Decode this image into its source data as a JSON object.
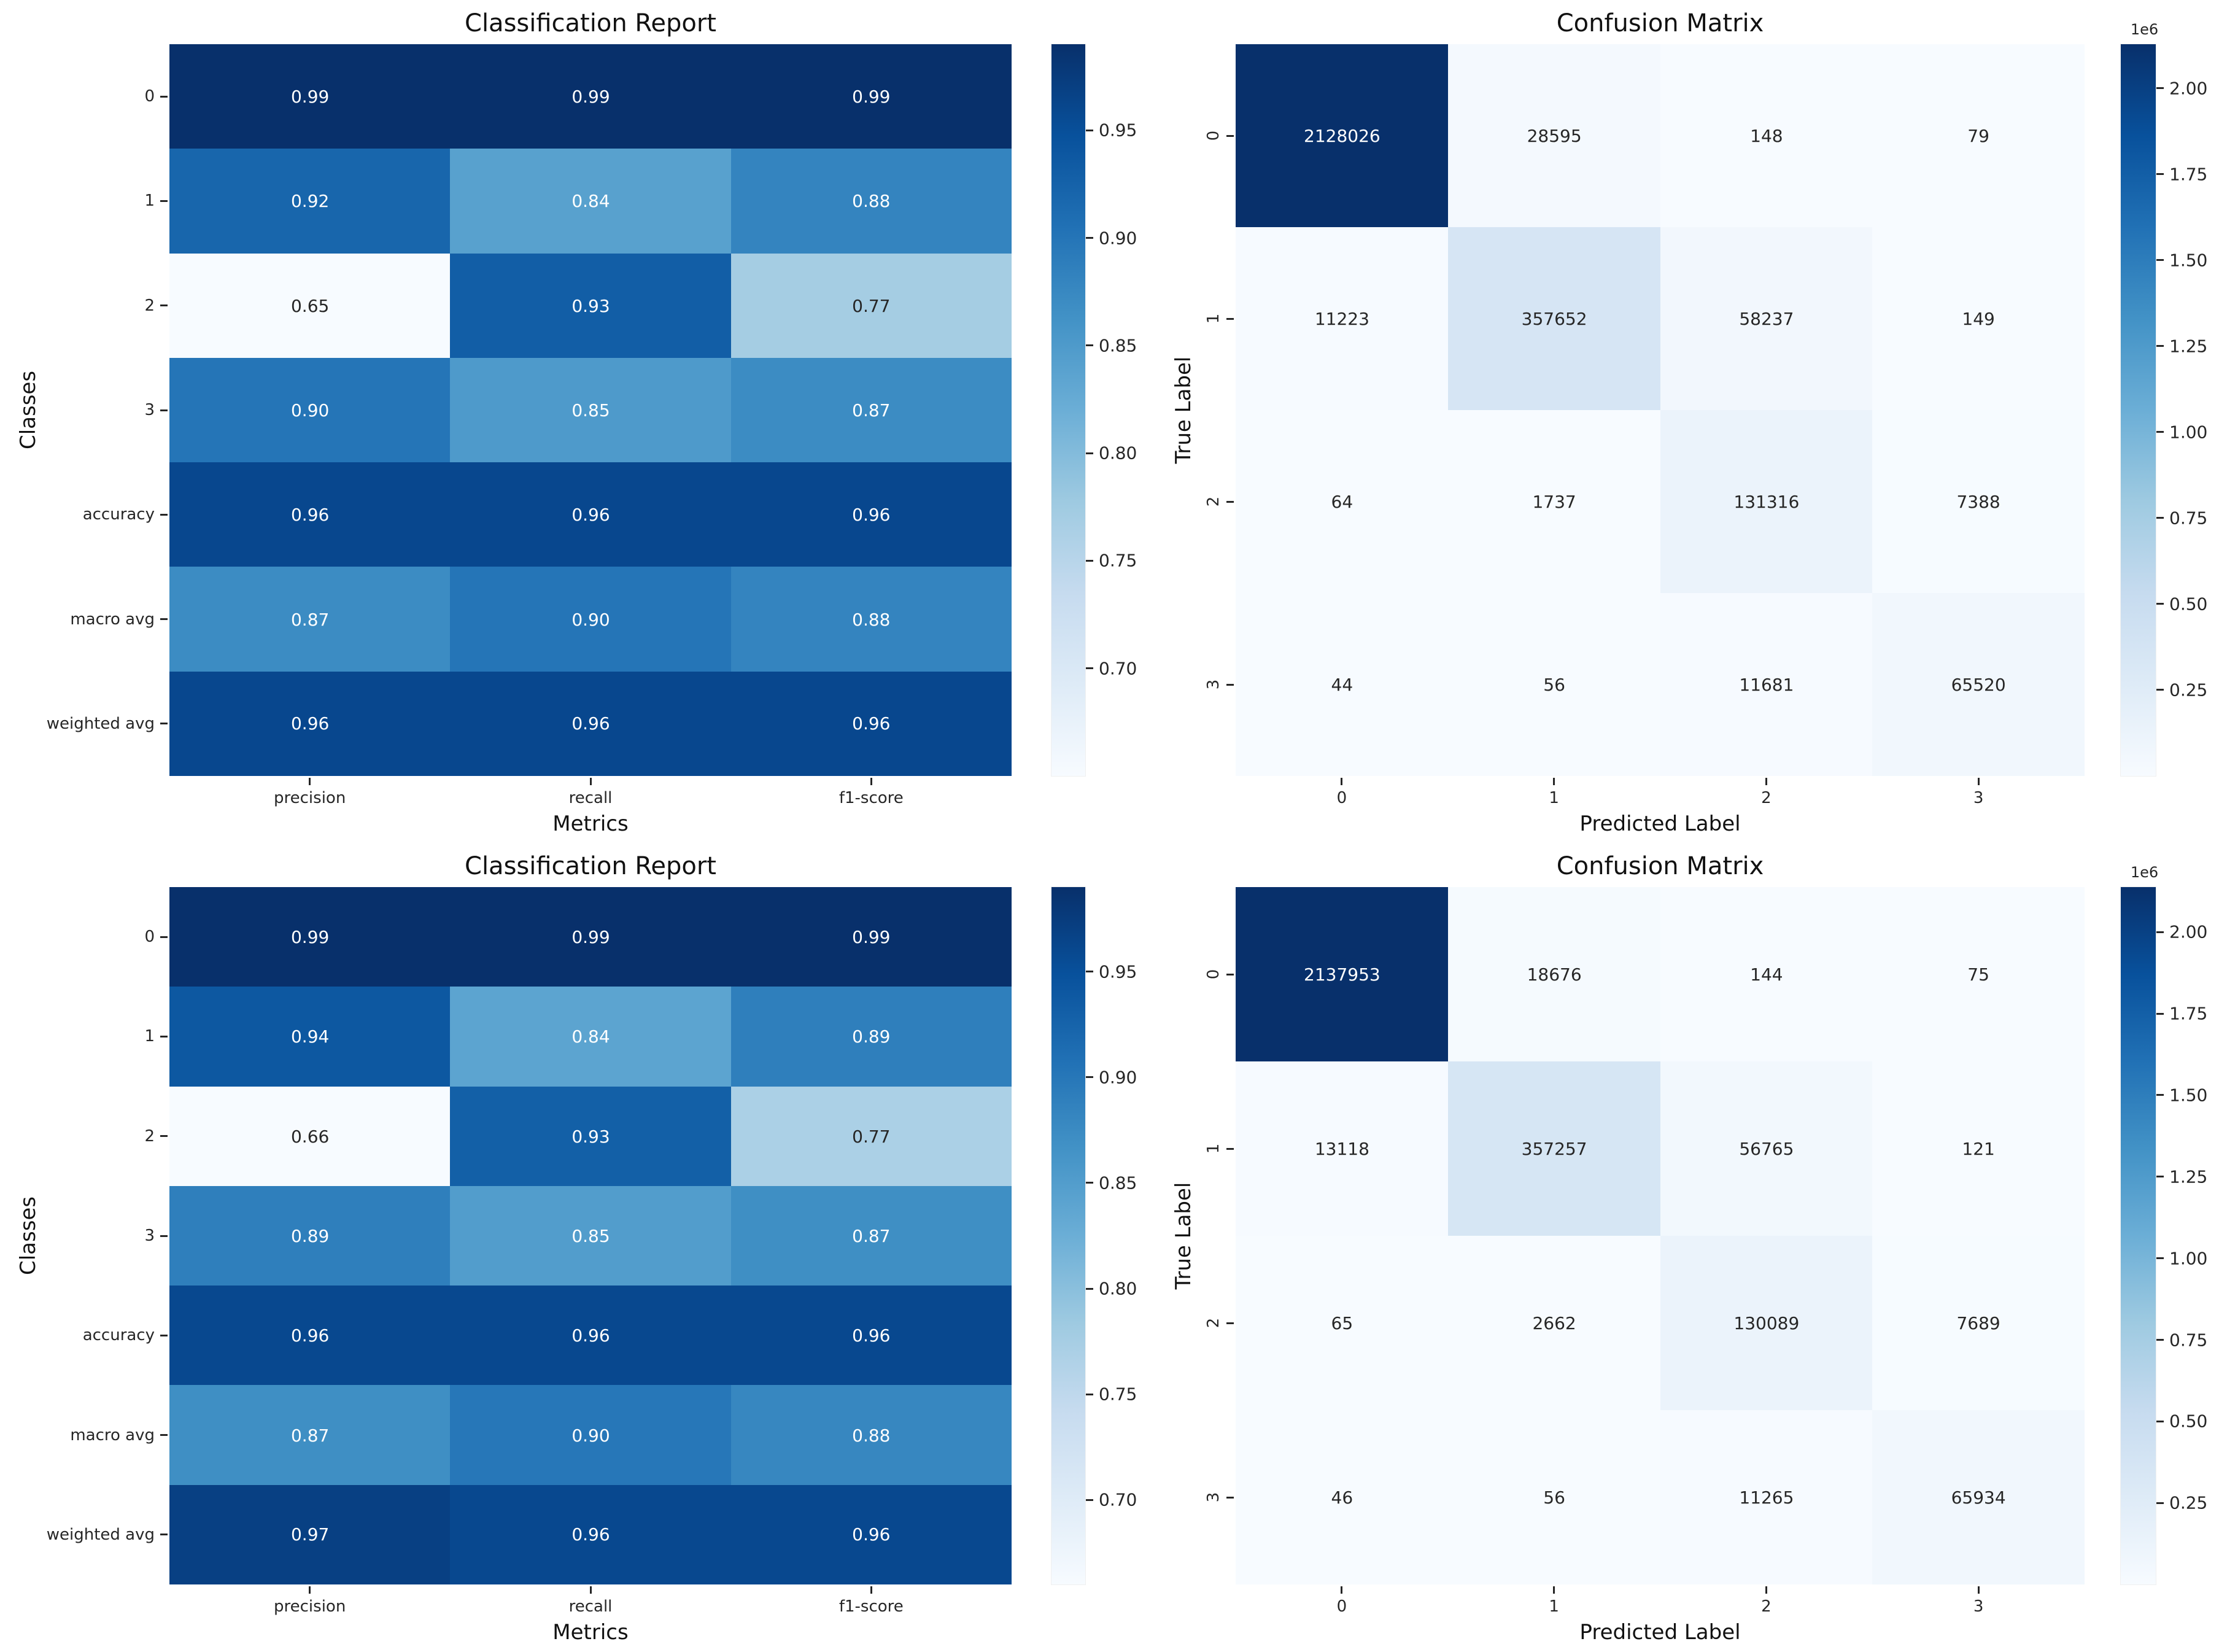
{
  "figure": {
    "background": "#ffffff"
  },
  "palette": {
    "cmap_name": "Blues",
    "cmap_stops": [
      "#f7fbff",
      "#deebf7",
      "#c6dbef",
      "#9ecae1",
      "#6baed6",
      "#4292c6",
      "#2171b5",
      "#08519c",
      "#08306b"
    ],
    "annotation_dark": "#262626",
    "annotation_light": "#ffffff",
    "text_color": "#111111"
  },
  "chart_data": [
    {
      "id": "classification-report-top",
      "type": "heatmap",
      "title": "Classification Report",
      "xlabel": "Metrics",
      "ylabel": "Classes",
      "x_categories": [
        "precision",
        "recall",
        "f1-score"
      ],
      "y_categories": [
        "0",
        "1",
        "2",
        "3",
        "accuracy",
        "macro avg",
        "weighted avg"
      ],
      "values": [
        [
          0.99,
          0.99,
          0.99
        ],
        [
          0.92,
          0.84,
          0.88
        ],
        [
          0.65,
          0.93,
          0.77
        ],
        [
          0.9,
          0.85,
          0.87
        ],
        [
          0.96,
          0.96,
          0.96
        ],
        [
          0.87,
          0.9,
          0.88
        ],
        [
          0.96,
          0.96,
          0.96
        ]
      ],
      "value_decimals": 2,
      "vmin": 0.65,
      "vmax": 0.99,
      "ytick_rotation": 0,
      "legend_position": "right-colorbar",
      "grid": false,
      "colorbar": {
        "tick_values": [
          0.7,
          0.75,
          0.8,
          0.85,
          0.9,
          0.95
        ],
        "tick_labels": [
          "0.70",
          "0.75",
          "0.80",
          "0.85",
          "0.90",
          "0.95"
        ],
        "offset_label": ""
      }
    },
    {
      "id": "confusion-matrix-top",
      "type": "heatmap",
      "title": "Confusion Matrix",
      "xlabel": "Predicted Label",
      "ylabel": "True Label",
      "x_categories": [
        "0",
        "1",
        "2",
        "3"
      ],
      "y_categories": [
        "0",
        "1",
        "2",
        "3"
      ],
      "values": [
        [
          2128026,
          28595,
          148,
          79
        ],
        [
          11223,
          357652,
          58237,
          149
        ],
        [
          64,
          1737,
          131316,
          7388
        ],
        [
          44,
          56,
          11681,
          65520
        ]
      ],
      "value_decimals": 0,
      "vmin": 44,
      "vmax": 2128026,
      "ytick_rotation": 90,
      "legend_position": "right-colorbar",
      "grid": false,
      "colorbar": {
        "tick_values": [
          250000,
          500000,
          750000,
          1000000,
          1250000,
          1500000,
          1750000,
          2000000
        ],
        "tick_labels": [
          "0.25",
          "0.50",
          "0.75",
          "1.00",
          "1.25",
          "1.50",
          "1.75",
          "2.00"
        ],
        "offset_label": "1e6"
      }
    },
    {
      "id": "classification-report-bottom",
      "type": "heatmap",
      "title": "Classification Report",
      "xlabel": "Metrics",
      "ylabel": "Classes",
      "x_categories": [
        "precision",
        "recall",
        "f1-score"
      ],
      "y_categories": [
        "0",
        "1",
        "2",
        "3",
        "accuracy",
        "macro avg",
        "weighted avg"
      ],
      "values": [
        [
          0.99,
          0.99,
          0.99
        ],
        [
          0.94,
          0.84,
          0.89
        ],
        [
          0.66,
          0.93,
          0.77
        ],
        [
          0.89,
          0.85,
          0.87
        ],
        [
          0.96,
          0.96,
          0.96
        ],
        [
          0.87,
          0.9,
          0.88
        ],
        [
          0.97,
          0.96,
          0.96
        ]
      ],
      "value_decimals": 2,
      "vmin": 0.66,
      "vmax": 0.99,
      "ytick_rotation": 0,
      "legend_position": "right-colorbar",
      "grid": false,
      "colorbar": {
        "tick_values": [
          0.7,
          0.75,
          0.8,
          0.85,
          0.9,
          0.95
        ],
        "tick_labels": [
          "0.70",
          "0.75",
          "0.80",
          "0.85",
          "0.90",
          "0.95"
        ],
        "offset_label": ""
      }
    },
    {
      "id": "confusion-matrix-bottom",
      "type": "heatmap",
      "title": "Confusion Matrix",
      "xlabel": "Predicted Label",
      "ylabel": "True Label",
      "x_categories": [
        "0",
        "1",
        "2",
        "3"
      ],
      "y_categories": [
        "0",
        "1",
        "2",
        "3"
      ],
      "values": [
        [
          2137953,
          18676,
          144,
          75
        ],
        [
          13118,
          357257,
          56765,
          121
        ],
        [
          65,
          2662,
          130089,
          7689
        ],
        [
          46,
          56,
          11265,
          65934
        ]
      ],
      "value_decimals": 0,
      "vmin": 46,
      "vmax": 2137953,
      "ytick_rotation": 90,
      "legend_position": "right-colorbar",
      "grid": false,
      "colorbar": {
        "tick_values": [
          250000,
          500000,
          750000,
          1000000,
          1250000,
          1500000,
          1750000,
          2000000
        ],
        "tick_labels": [
          "0.25",
          "0.50",
          "0.75",
          "1.00",
          "1.25",
          "1.50",
          "1.75",
          "2.00"
        ],
        "offset_label": "1e6"
      }
    }
  ]
}
